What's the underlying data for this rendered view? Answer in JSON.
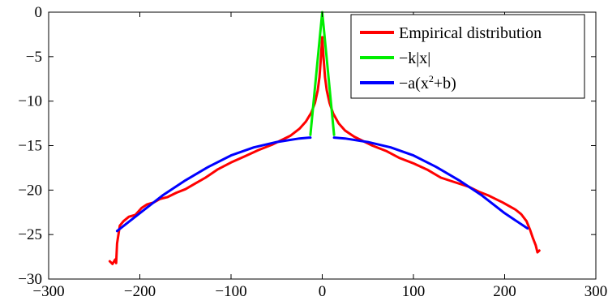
{
  "chart_data": {
    "type": "line",
    "xlim": [
      -300,
      300
    ],
    "ylim": [
      -30,
      0
    ],
    "x_ticks": [
      -300,
      -200,
      -100,
      0,
      100,
      200,
      300
    ],
    "y_ticks": [
      0,
      -5,
      -10,
      -15,
      -20,
      -25,
      -30
    ],
    "x_tick_labels": [
      "−300",
      "−200",
      "−100",
      "0",
      "100",
      "200",
      "300"
    ],
    "y_tick_labels": [
      "0",
      "−5",
      "−10",
      "−15",
      "−20",
      "−25",
      "−30"
    ],
    "grid": false,
    "legend_position": "top-right",
    "legend": {
      "empirical": "Empirical distribution",
      "laplace": "−k|x|",
      "quad_prefix": "−a(x",
      "quad_sup": "2",
      "quad_suffix": "+b)"
    },
    "series": [
      {
        "name": "Empirical distribution",
        "color": "#ff0000",
        "points": [
          [
            -233,
            -28.0
          ],
          [
            -230,
            -28.3
          ],
          [
            -227,
            -27.8
          ],
          [
            -226,
            -28.2
          ],
          [
            -225,
            -26.0
          ],
          [
            -222,
            -24.0
          ],
          [
            -218,
            -23.5
          ],
          [
            -212,
            -23.0
          ],
          [
            -205,
            -22.8
          ],
          [
            -198,
            -22.0
          ],
          [
            -192,
            -21.6
          ],
          [
            -185,
            -21.4
          ],
          [
            -178,
            -21.0
          ],
          [
            -170,
            -20.8
          ],
          [
            -160,
            -20.3
          ],
          [
            -150,
            -19.9
          ],
          [
            -140,
            -19.3
          ],
          [
            -128,
            -18.6
          ],
          [
            -115,
            -17.7
          ],
          [
            -100,
            -16.9
          ],
          [
            -85,
            -16.2
          ],
          [
            -70,
            -15.5
          ],
          [
            -55,
            -14.9
          ],
          [
            -45,
            -14.4
          ],
          [
            -35,
            -13.9
          ],
          [
            -25,
            -13.1
          ],
          [
            -18,
            -12.3
          ],
          [
            -12,
            -11.3
          ],
          [
            -8,
            -10.2
          ],
          [
            -5,
            -8.8
          ],
          [
            -3,
            -7.3
          ],
          [
            -1.5,
            -5.2
          ],
          [
            0,
            -2.8
          ],
          [
            1.5,
            -5.2
          ],
          [
            3,
            -7.3
          ],
          [
            5,
            -8.8
          ],
          [
            8,
            -10.2
          ],
          [
            12,
            -11.4
          ],
          [
            18,
            -12.5
          ],
          [
            25,
            -13.3
          ],
          [
            35,
            -14.0
          ],
          [
            45,
            -14.5
          ],
          [
            55,
            -15.0
          ],
          [
            70,
            -15.6
          ],
          [
            85,
            -16.4
          ],
          [
            100,
            -17.0
          ],
          [
            115,
            -17.7
          ],
          [
            130,
            -18.6
          ],
          [
            145,
            -19.1
          ],
          [
            160,
            -19.6
          ],
          [
            172,
            -20.2
          ],
          [
            182,
            -20.6
          ],
          [
            190,
            -21.0
          ],
          [
            198,
            -21.4
          ],
          [
            205,
            -21.8
          ],
          [
            212,
            -22.2
          ],
          [
            218,
            -22.7
          ],
          [
            224,
            -23.5
          ],
          [
            228,
            -24.5
          ],
          [
            231,
            -25.4
          ],
          [
            234,
            -26.2
          ],
          [
            236,
            -27.0
          ],
          [
            238,
            -26.8
          ]
        ]
      },
      {
        "name": "−k|x|",
        "color": "#00ee00",
        "points": [
          [
            -13,
            -13.8
          ],
          [
            0,
            0
          ],
          [
            13,
            -13.8
          ]
        ]
      },
      {
        "name": "−a(x²+b)",
        "color": "#0000ff",
        "segments": [
          [
            [
              -225,
              -24.6
            ],
            [
              -200,
              -22.6
            ],
            [
              -175,
              -20.6
            ],
            [
              -150,
              -18.9
            ],
            [
              -125,
              -17.4
            ],
            [
              -100,
              -16.1
            ],
            [
              -75,
              -15.2
            ],
            [
              -50,
              -14.6
            ],
            [
              -25,
              -14.2
            ],
            [
              -13,
              -14.1
            ]
          ],
          [
            [
              13,
              -14.1
            ],
            [
              25,
              -14.2
            ],
            [
              50,
              -14.6
            ],
            [
              75,
              -15.2
            ],
            [
              100,
              -16.1
            ],
            [
              125,
              -17.4
            ],
            [
              150,
              -18.9
            ],
            [
              175,
              -20.6
            ],
            [
              200,
              -22.6
            ],
            [
              225,
              -24.3
            ]
          ]
        ]
      }
    ]
  }
}
